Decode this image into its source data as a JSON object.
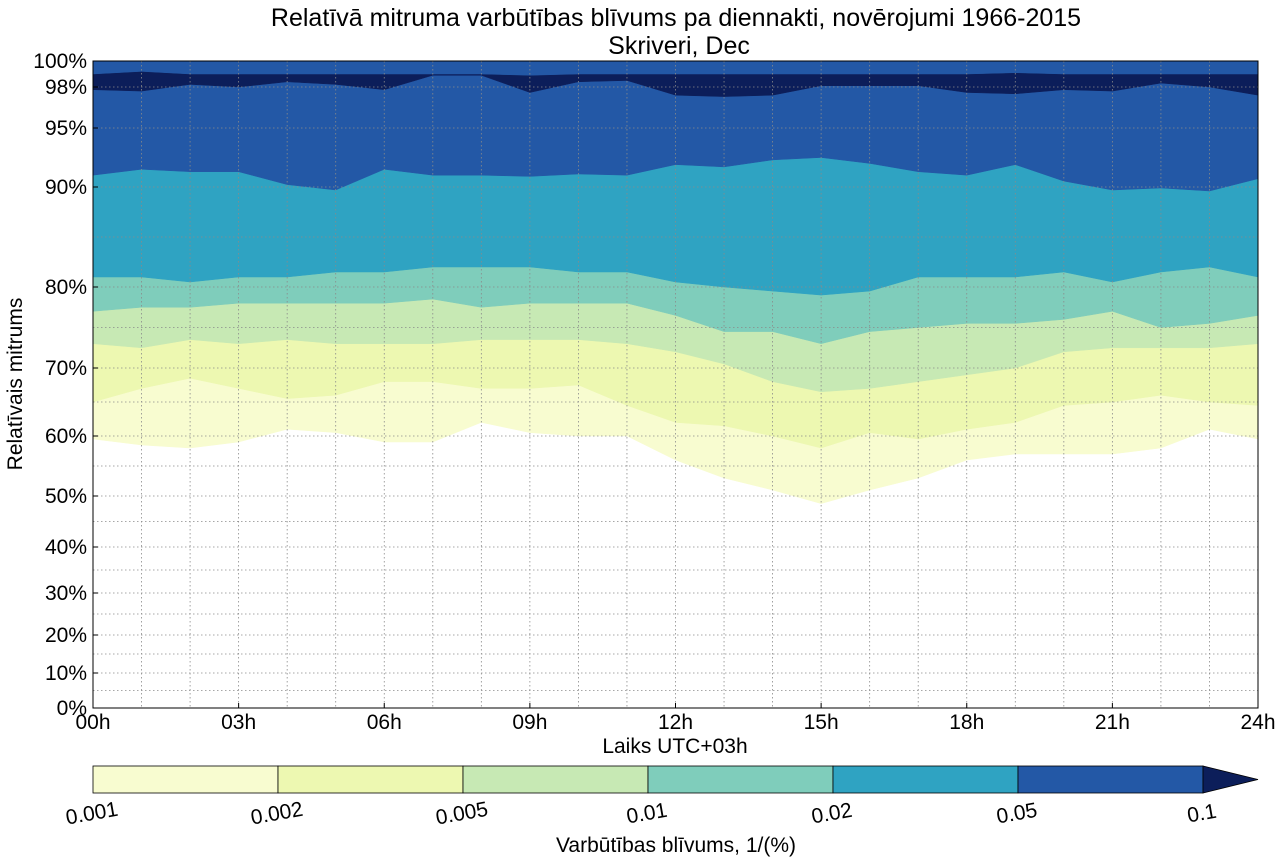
{
  "chart_data": {
    "type": "heatmap",
    "title": "Relatīvā mitruma varbūtības blīvums pa diennakti, novērojumi 1966-2015",
    "subtitle": "Skriveri, Dec",
    "xlabel": "Laiks UTC+03h",
    "ylabel": "Relatīvais mitrums",
    "x_ticks": [
      "00h",
      "03h",
      "06h",
      "09h",
      "12h",
      "15h",
      "18h",
      "21h",
      "24h"
    ],
    "y_ticks": [
      {
        "value": 0,
        "label": "0%"
      },
      {
        "value": 10,
        "label": "10%"
      },
      {
        "value": 20,
        "label": "20%"
      },
      {
        "value": 30,
        "label": "30%"
      },
      {
        "value": 40,
        "label": "40%"
      },
      {
        "value": 50,
        "label": "50%"
      },
      {
        "value": 60,
        "label": "60%"
      },
      {
        "value": 70,
        "label": "70%"
      },
      {
        "value": 80,
        "label": "80%"
      },
      {
        "value": 90,
        "label": "90%"
      },
      {
        "value": 95,
        "label": "95%"
      },
      {
        "value": 98,
        "label": "98%"
      },
      {
        "value": 100,
        "label": "100%"
      }
    ],
    "grid": true,
    "xlim": [
      0,
      24
    ],
    "ylim": [
      0,
      100
    ],
    "hours": [
      0,
      1,
      2,
      3,
      4,
      5,
      6,
      7,
      8,
      9,
      10,
      11,
      12,
      13,
      14,
      15,
      16,
      17,
      18,
      19,
      20,
      21,
      22,
      23,
      24
    ],
    "contour_levels": [
      0.001,
      0.002,
      0.005,
      0.01,
      0.02,
      0.05,
      0.1
    ],
    "level_colors": [
      "#f8fcd0",
      "#edf8b1",
      "#c7e9b4",
      "#7fcdbb",
      "#2fa3c2",
      "#2358a6",
      "#0c1e5a"
    ],
    "contour_boundaries_humidity_pct": [
      [
        59.5,
        58.5,
        58.0,
        59.0,
        61.0,
        60.5,
        59.0,
        59.0,
        62.0,
        60.5,
        60.0,
        60.0,
        56.0,
        53.0,
        51.0,
        48.5,
        51.0,
        53.0,
        56.0,
        57.0,
        57.0,
        57.0,
        58.0,
        61.0,
        59.5
      ],
      [
        65.0,
        67.0,
        68.5,
        67.0,
        65.5,
        66.0,
        68.0,
        68.0,
        67.0,
        67.0,
        67.5,
        64.5,
        62.0,
        61.5,
        60.0,
        58.0,
        60.5,
        59.5,
        61.0,
        62.0,
        64.5,
        65.0,
        66.0,
        65.0,
        64.5
      ],
      [
        73.0,
        72.5,
        73.5,
        73.0,
        73.5,
        73.0,
        73.0,
        73.0,
        73.5,
        73.5,
        73.5,
        73.0,
        72.0,
        70.5,
        68.0,
        66.5,
        67.0,
        68.0,
        69.0,
        70.0,
        72.0,
        72.5,
        72.5,
        72.5,
        73.0
      ],
      [
        77.0,
        77.5,
        77.5,
        78.0,
        78.0,
        78.0,
        78.0,
        78.5,
        77.5,
        78.0,
        78.0,
        78.0,
        76.5,
        74.5,
        74.5,
        73.0,
        74.5,
        75.0,
        75.5,
        75.5,
        76.0,
        77.0,
        75.0,
        75.5,
        76.5
      ],
      [
        81.0,
        81.0,
        80.5,
        81.0,
        81.0,
        81.5,
        81.5,
        82.0,
        82.0,
        82.0,
        81.5,
        81.5,
        80.5,
        80.0,
        79.5,
        79.0,
        79.5,
        81.0,
        81.0,
        81.0,
        81.5,
        80.5,
        81.5,
        82.0,
        81.0
      ],
      [
        91.0,
        91.5,
        91.3,
        91.3,
        90.2,
        89.7,
        91.5,
        91.0,
        91.0,
        90.9,
        91.1,
        91.0,
        91.9,
        91.7,
        92.3,
        92.5,
        92.0,
        91.3,
        91.0,
        91.9,
        90.5,
        89.7,
        89.9,
        89.6,
        90.7
      ],
      [
        97.8,
        97.7,
        98.2,
        98.0,
        98.4,
        98.2,
        97.8,
        98.9,
        98.9,
        97.6,
        98.4,
        98.5,
        97.4,
        97.3,
        97.4,
        98.1,
        98.1,
        98.1,
        97.6,
        97.5,
        97.8,
        97.7,
        98.3,
        98.0,
        97.4
      ],
      [
        99.0,
        99.2,
        99.0,
        99.0,
        99.0,
        99.0,
        99.0,
        99.0,
        99.0,
        98.9,
        99.0,
        99.0,
        99.0,
        99.0,
        99.0,
        99.0,
        99.0,
        99.0,
        99.0,
        99.1,
        99.0,
        99.0,
        99.0,
        99.0,
        99.0
      ]
    ],
    "colorbar": {
      "label": "Varbūtības blīvums, 1/(%)",
      "tick_labels": [
        "0.001",
        "0.002",
        "0.005",
        "0.01",
        "0.02",
        "0.05",
        "0.1"
      ],
      "extend": "max"
    }
  }
}
